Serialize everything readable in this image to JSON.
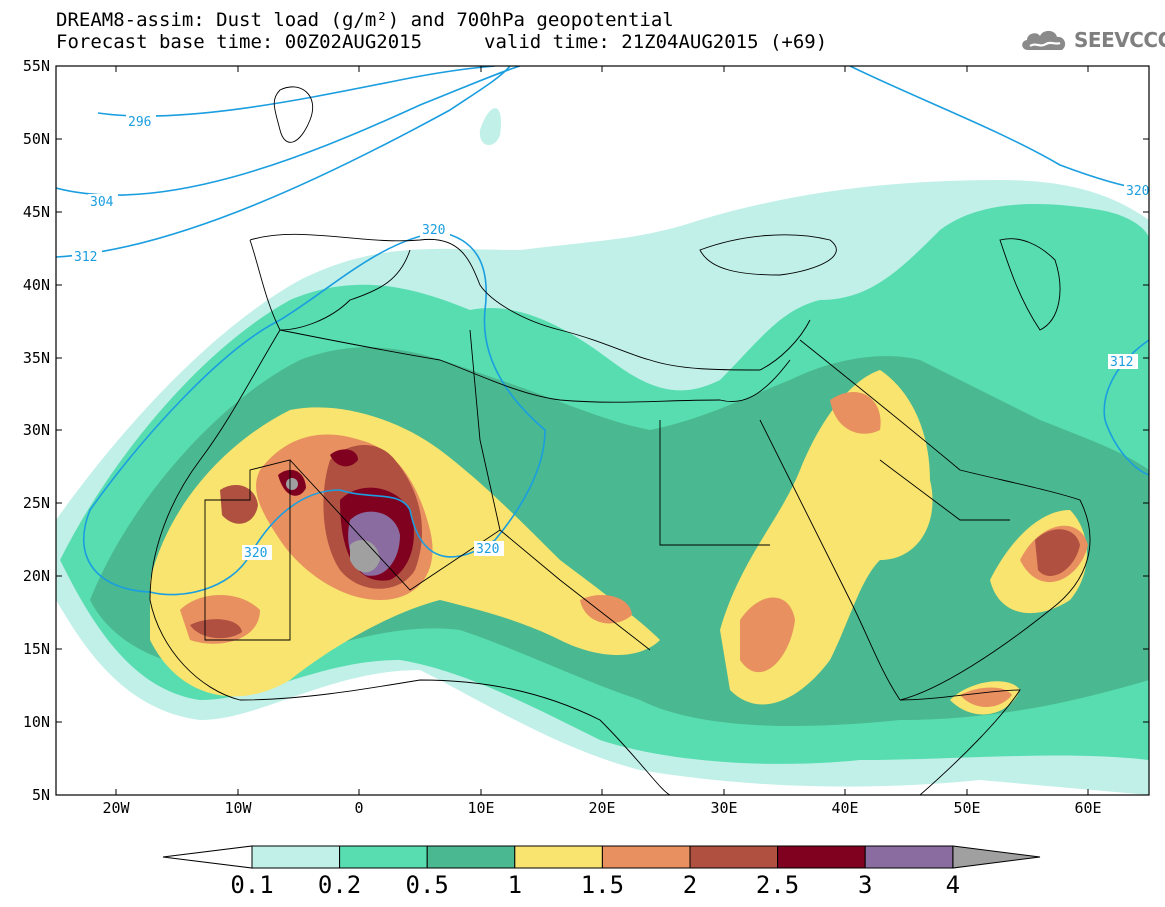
{
  "header": {
    "title_line1": "DREAM8-assim: Dust load (g/m²) and 700hPa geopotential",
    "title_line2_base": "Forecast base time: 00Z02AUG2015",
    "title_line2_valid": "valid time: 21Z04AUG2015 (+69)"
  },
  "logo": {
    "text": "SEEVCCC",
    "icon": "cloud-icon",
    "color": "#808080"
  },
  "axes": {
    "lat_labels": [
      "55N",
      "50N",
      "45N",
      "40N",
      "35N",
      "30N",
      "25N",
      "20N",
      "15N",
      "10N",
      "5N"
    ],
    "lon_labels": [
      "20W",
      "10W",
      "0",
      "10E",
      "20E",
      "30E",
      "40E",
      "50E",
      "60E"
    ]
  },
  "contours": {
    "line_color": "#1a9ee0",
    "labels": [
      "296",
      "304",
      "312",
      "320",
      "320",
      "320",
      "320",
      "312"
    ]
  },
  "colorbar": {
    "colors": [
      "#c0f0e8",
      "#58ddb0",
      "#4ab890",
      "#f8e46e",
      "#e89060",
      "#b05040",
      "#800020",
      "#8a6ca0",
      "#a0a0a0"
    ],
    "labels": [
      "0.1",
      "0.2",
      "0.5",
      "1",
      "1.5",
      "2",
      "2.5",
      "3",
      "4"
    ]
  }
}
